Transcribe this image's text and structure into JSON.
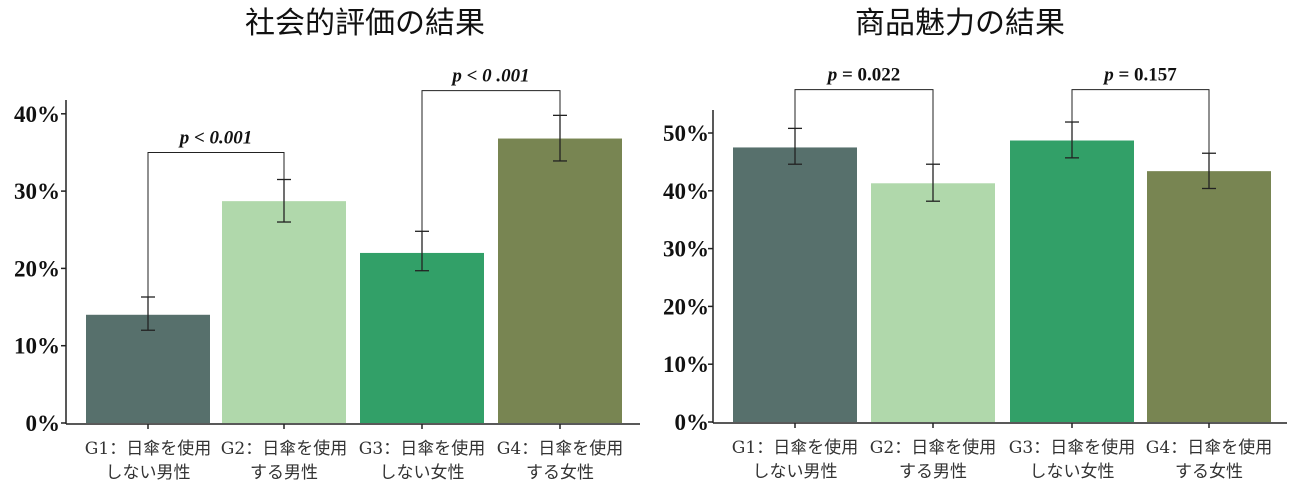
{
  "chart_data": [
    {
      "type": "bar",
      "title": "社会的評価の結果",
      "categories": [
        [
          "G1：日傘を使用",
          "しない男性"
        ],
        [
          "G2：日傘を使用",
          "する男性"
        ],
        [
          "G3：日傘を使用",
          "しない女性"
        ],
        [
          "G4：日傘を使用",
          "する女性"
        ]
      ],
      "values": [
        14,
        28.7,
        22,
        36.8
      ],
      "error": [
        [
          12,
          16.3
        ],
        [
          26,
          31.5
        ],
        [
          19.7,
          24.8
        ],
        [
          33.9,
          39.8
        ]
      ],
      "colors": [
        "#57706c",
        "#b0d8ab",
        "#32a068",
        "#788552"
      ],
      "ylim": [
        0,
        40
      ],
      "yticks": [
        0,
        10,
        20,
        30,
        40
      ],
      "ytick_labels": [
        "0%",
        "10%",
        "20%",
        "30%",
        "40%"
      ],
      "xlabel": "",
      "ylabel": "",
      "brackets": [
        {
          "from": 0,
          "to": 1,
          "y": 35,
          "label": "p < 0.001"
        },
        {
          "from": 2,
          "to": 3,
          "y": 43,
          "label": "p < 0 .001"
        }
      ]
    },
    {
      "type": "bar",
      "title": "商品魅力の結果",
      "categories": [
        [
          "G1：日傘を使用",
          "しない男性"
        ],
        [
          "G2：日傘を使用",
          "する男性"
        ],
        [
          "G3：日傘を使用",
          "しない女性"
        ],
        [
          "G4：日傘を使用",
          "する女性"
        ]
      ],
      "values": [
        47.5,
        41.3,
        48.7,
        43.4
      ],
      "error": [
        [
          44.6,
          50.8
        ],
        [
          38.2,
          44.6
        ],
        [
          45.7,
          51.9
        ],
        [
          40.4,
          46.5
        ]
      ],
      "colors": [
        "#57706c",
        "#b0d8ab",
        "#32a068",
        "#788552"
      ],
      "ylim": [
        0,
        50
      ],
      "yticks": [
        0,
        10,
        20,
        30,
        40,
        50
      ],
      "ytick_labels": [
        "0%",
        "10%",
        "20%",
        "30%",
        "40%",
        "50%"
      ],
      "xlabel": "",
      "ylabel": "",
      "brackets": [
        {
          "from": 0,
          "to": 1,
          "y": 57.5,
          "label": "p = 0.022"
        },
        {
          "from": 2,
          "to": 3,
          "y": 57.5,
          "label": "p = 0.157"
        }
      ]
    }
  ]
}
